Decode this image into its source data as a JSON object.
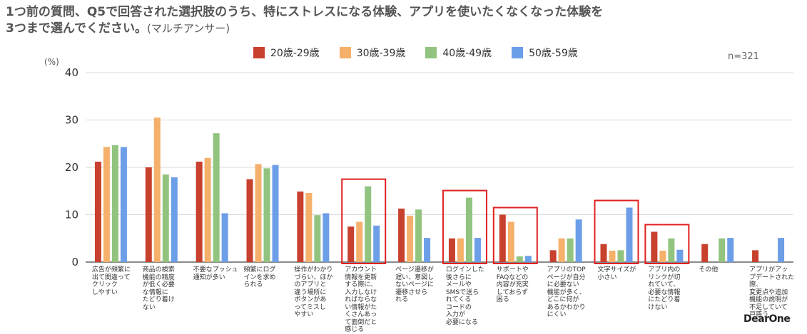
{
  "title": {
    "main": "1つ前の質問、Q5で回答された選択肢のうち、特にストレスになる体験、アプリを使いたくなくなった体験を",
    "main2": "3つまで選んでください。",
    "sub": "(マルチアンサー)"
  },
  "sample": "n=321",
  "unit": "(%)",
  "logo": "DearOne",
  "chart_data": {
    "type": "bar",
    "ylim": [
      0,
      40
    ],
    "yticks": [
      0,
      10,
      20,
      30,
      40
    ],
    "grid": true,
    "legend_position": "top",
    "colors": [
      "#c8402e",
      "#f5b06b",
      "#92c47f",
      "#6d9ee8"
    ],
    "highlight_color": "#e02020",
    "series": [
      {
        "name": "20歳-29歳",
        "values": [
          21.2,
          20.0,
          21.2,
          17.5,
          14.9,
          7.5,
          11.3,
          5.0,
          10.0,
          2.5,
          3.8,
          6.4,
          3.8,
          2.5
        ]
      },
      {
        "name": "30歳-39歳",
        "values": [
          24.3,
          30.5,
          22.0,
          20.7,
          14.6,
          8.5,
          9.8,
          5.0,
          8.5,
          5.0,
          2.4,
          2.4,
          0,
          0
        ]
      },
      {
        "name": "40歳-49歳",
        "values": [
          24.7,
          18.5,
          27.2,
          19.8,
          9.9,
          16.0,
          11.1,
          13.6,
          1.2,
          5.0,
          2.5,
          5.0,
          5.0,
          0
        ]
      },
      {
        "name": "50歳-59歳",
        "values": [
          24.3,
          17.9,
          10.3,
          20.5,
          10.3,
          7.7,
          5.1,
          5.1,
          1.3,
          9.0,
          11.5,
          2.6,
          5.1,
          5.1
        ]
      }
    ],
    "categories": [
      "広告が頻繁に出て間違ってクリックしやすい",
      "商品の検索機能の精度が低く必要な情報にたどり着けない",
      "不要なプッシュ通知が多い",
      "頻繁にログインを求められる",
      "操作がわかりづらい、ほかのアプリと違う場所にボタンがあってミスしやすい",
      "アカウント情報を更新する際に、入力しなければならない情報がたくさんあって面倒だと感じる",
      "ページ遷移が遅い、意図しないページに遷移させられる",
      "ログインした後さらにメールやSMSで送られてくるコードの入力が必要になる",
      "サポートやFAQなどの内容が充実しておらず困る",
      "アプリのTOPページが自分に必要ない機能が多く、どこに何があるかわかりにくい",
      "文字サイズが小さい",
      "アプリ内のリンクが切れていて、必要な情報にたどり着けない",
      "その他",
      "アプリがアップデートされた際、変更点や追加機能の説明が不足していて戸惑う"
    ],
    "category_lines": [
      [
        "広告が頻繁に",
        "出て間違って",
        "クリック",
        "しやすい"
      ],
      [
        "商品の検索",
        "機能の精度",
        "が低く必要",
        "な情報に",
        "たどり着け",
        "ない"
      ],
      [
        "不要なプッシュ",
        "通知が多い"
      ],
      [
        "頻繁にログ",
        "インを求め",
        "られる"
      ],
      [
        "操作がわかり",
        "づらい、ほか",
        "のアプリと",
        "違う場所に",
        "ボタンがあ",
        "ってミスし",
        "やすい"
      ],
      [
        "アカウント",
        "情報を更新",
        "する際に、",
        "入力しなけ",
        "ればならな",
        "い情報がた",
        "くさんあっ",
        "て面倒だと",
        "感じる"
      ],
      [
        "ページ遷移が",
        "遅い、意図し",
        "ないページに",
        "遷移させら",
        "れる"
      ],
      [
        "ログインした",
        "後さらに",
        "メールや",
        "SMSで送ら",
        "れてくる",
        "コードの",
        "入力が",
        "必要になる"
      ],
      [
        "サポートや",
        "FAQなどの",
        "内容が充実",
        "しておらず",
        "困る"
      ],
      [
        "アプリのTOP",
        "ページが自分",
        "に必要ない",
        "機能が多く、",
        "どこに何が",
        "あるかわかり",
        "にくい"
      ],
      [
        "文字サイズが",
        "小さい"
      ],
      [
        "アプリ内の",
        "リンクが切",
        "れていて、",
        "必要な情報",
        "にたどり着",
        "けない"
      ],
      [
        "その他"
      ],
      [
        "アプリがアッ",
        "プデートされた際、",
        "変更点や追加",
        "機能の説明が",
        "不足していて",
        "戸惑う"
      ]
    ],
    "highlighted": [
      5,
      7,
      8,
      10,
      11
    ]
  }
}
